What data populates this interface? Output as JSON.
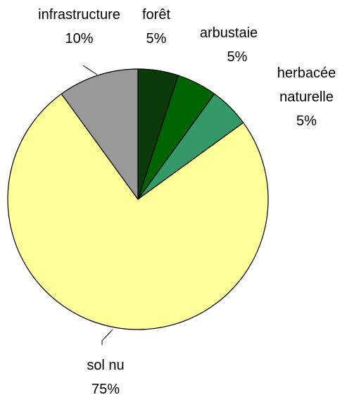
{
  "chart_data": {
    "type": "pie",
    "categories": [
      "forêt",
      "arbustaie",
      "herbacée naturelle",
      "sol nu",
      "infrastructure"
    ],
    "values": [
      5,
      5,
      5,
      75,
      10
    ],
    "value_labels": [
      "5%",
      "5%",
      "5%",
      "75%",
      "10%"
    ],
    "colors": [
      "#0b3b0b",
      "#006400",
      "#339966",
      "#ffff99",
      "#999999"
    ]
  }
}
